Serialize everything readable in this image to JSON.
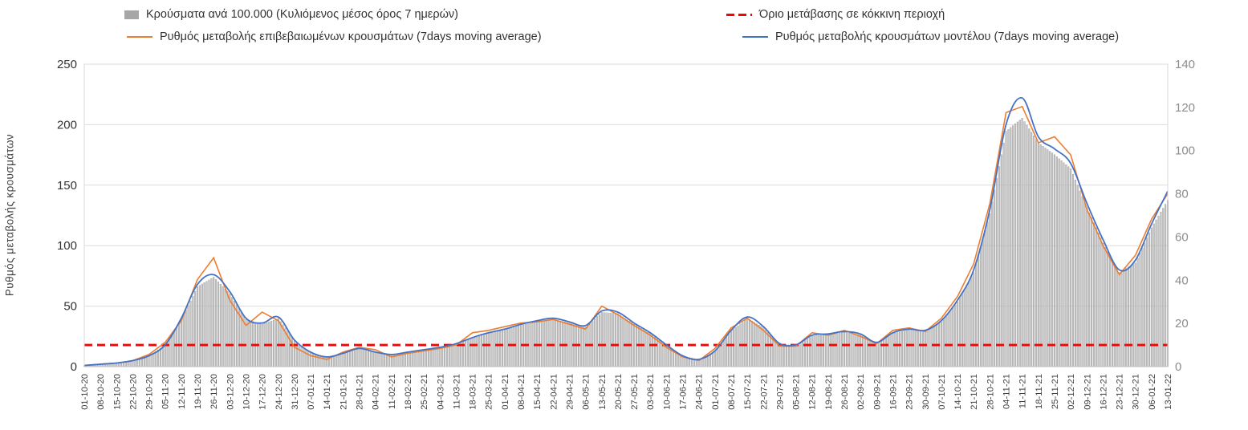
{
  "chart_data": {
    "type": "combo-bar-line",
    "title": "",
    "ylabel_left": "Ρυθμός μεταβολής κρουσμάτων",
    "left_axis": {
      "min": 0,
      "max": 250,
      "ticks": [
        0,
        50,
        100,
        150,
        200,
        250
      ]
    },
    "right_axis": {
      "min": 0,
      "max": 140,
      "ticks": [
        0,
        20,
        40,
        60,
        80,
        100,
        120,
        140
      ]
    },
    "x_tick_interval_days": 7,
    "grid": true,
    "legend_position": "top",
    "x_tick_labels": [
      "01-10-20",
      "08-10-20",
      "15-10-20",
      "22-10-20",
      "29-10-20",
      "05-11-20",
      "12-11-20",
      "19-11-20",
      "26-11-20",
      "03-12-20",
      "10-12-20",
      "17-12-20",
      "24-12-20",
      "31-12-20",
      "07-01-21",
      "14-01-21",
      "21-01-21",
      "28-01-21",
      "04-02-21",
      "11-02-21",
      "18-02-21",
      "25-02-21",
      "04-03-21",
      "11-03-21",
      "18-03-21",
      "25-03-21",
      "01-04-21",
      "08-04-21",
      "15-04-21",
      "22-04-21",
      "29-04-21",
      "06-05-21",
      "13-05-21",
      "20-05-21",
      "27-05-21",
      "03-06-21",
      "10-06-21",
      "17-06-21",
      "24-06-21",
      "01-07-21",
      "08-07-21",
      "15-07-21",
      "22-07-21",
      "29-07-21",
      "05-08-21",
      "12-08-21",
      "19-08-21",
      "26-08-21",
      "02-09-21",
      "09-09-21",
      "16-09-21",
      "23-09-21",
      "30-09-21",
      "07-10-21",
      "14-10-21",
      "21-10-21",
      "28-10-21",
      "04-11-21",
      "11-11-21",
      "18-11-21",
      "25-11-21",
      "02-12-21",
      "09-12-21",
      "16-12-21",
      "23-12-21",
      "30-12-21",
      "06-01-22",
      "13-01-22"
    ],
    "series": [
      {
        "name": "Κρούσματα ανά 100.000 (Κυλιόμενος μέσος όρος 7 ημερών)",
        "type": "bar",
        "axis": "right",
        "color": "#c6c6c6",
        "values": [
          0.5,
          1.1,
          1.6,
          2.7,
          4.9,
          9.8,
          21.8,
          37,
          41.4,
          33.8,
          21.8,
          19.6,
          22.3,
          12,
          6.5,
          4.4,
          6,
          8.2,
          6.5,
          5.5,
          6.5,
          7.6,
          8.7,
          10.4,
          13.1,
          15.3,
          16.9,
          19.1,
          20.7,
          21.8,
          20.2,
          18.5,
          25.1,
          24.5,
          19.6,
          15.3,
          9.8,
          4.9,
          3.3,
          7.1,
          16.4,
          22.3,
          18,
          10.4,
          9.8,
          14.2,
          14.7,
          15.8,
          14.7,
          10.9,
          15.3,
          16.9,
          16.4,
          20.7,
          30,
          43.6,
          70.9,
          109,
          115,
          103.6,
          98.1,
          91.6,
          73.6,
          57.2,
          43.6,
          48,
          64.3,
          77
        ]
      },
      {
        "name": "Ρυθμός μεταβολής επιβεβαιωμένων κρουσμάτων (7days moving average)",
        "type": "line",
        "axis": "left",
        "color": "#ED7D31",
        "values": [
          1,
          2,
          3,
          5,
          10,
          20,
          38,
          72,
          90,
          55,
          34,
          45,
          38,
          16,
          9,
          6,
          12,
          16,
          14,
          8,
          11,
          13,
          15,
          18,
          28,
          30,
          33,
          36,
          37,
          39,
          35,
          31,
          50,
          43,
          34,
          26,
          16,
          8,
          5,
          15,
          32,
          40,
          30,
          17,
          17,
          28,
          26,
          30,
          25,
          19,
          30,
          32,
          29,
          40,
          58,
          85,
          135,
          210,
          215,
          185,
          190,
          175,
          130,
          100,
          76,
          92,
          122,
          143
        ]
      },
      {
        "name": "Ρυθμός μεταβολής κρουσμάτων μοντέλου (7days moving average)",
        "type": "line",
        "axis": "left",
        "color": "#4472C4",
        "values": [
          1,
          2,
          3,
          5,
          9,
          18,
          40,
          68,
          76,
          62,
          40,
          36,
          41,
          22,
          12,
          8,
          11,
          15,
          12,
          10,
          12,
          14,
          16,
          19,
          24,
          28,
          31,
          35,
          38,
          40,
          37,
          34,
          46,
          45,
          36,
          28,
          18,
          9,
          6,
          13,
          30,
          41,
          33,
          19,
          18,
          26,
          27,
          29,
          27,
          20,
          28,
          31,
          30,
          38,
          55,
          80,
          130,
          200,
          222,
          190,
          180,
          168,
          135,
          105,
          80,
          88,
          118,
          145
        ]
      },
      {
        "name": "Όριο μετάβασης σε κόκκινη περιοχή",
        "type": "threshold",
        "axis": "right",
        "color": "#FF0000",
        "value": 10
      }
    ]
  },
  "colors": {
    "grid": "#dcdcdc",
    "axis": "#bfbfbf",
    "border": "#d9d9d9",
    "left_tick_text": "#333333",
    "right_tick_text": "#8c8c8c",
    "x_tick_text": "#404040",
    "bar_fill": "#c6c6c6",
    "bar_stroke": "#8f8f8f",
    "threshold": "#FF0000",
    "orange_line": "#ED7D31",
    "blue_line": "#4472C4"
  }
}
